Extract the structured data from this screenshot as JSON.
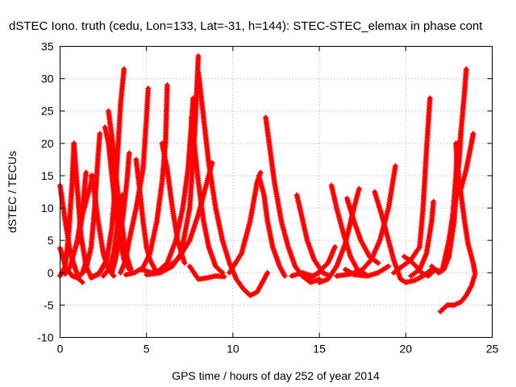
{
  "chart_data": {
    "type": "scatter",
    "title": "dSTEC Iono. truth (cedu, Lon=133, Lat=-31, h=144): STEC-STEC_elemax in phase cont",
    "xlabel": "GPS time / hours of day 252 of year 2014",
    "ylabel": "dSTEC  / TECUs",
    "xlim": [
      0,
      25
    ],
    "ylim": [
      -10,
      35
    ],
    "xticks": [
      0,
      5,
      10,
      15,
      20,
      25
    ],
    "yticks": [
      -10,
      -5,
      0,
      5,
      10,
      15,
      20,
      25,
      30,
      35
    ],
    "grid": true,
    "marker": "plus",
    "color": "#ff0000",
    "series": [
      {
        "points": [
          [
            0.0,
            -0.5
          ],
          [
            0.3,
            1.0
          ],
          [
            0.5,
            6.0
          ],
          [
            0.7,
            14.0
          ],
          [
            0.8,
            20.0
          ]
        ]
      },
      {
        "points": [
          [
            0.8,
            20.0
          ],
          [
            1.0,
            13.0
          ],
          [
            1.2,
            6.0
          ],
          [
            1.5,
            1.0
          ],
          [
            1.8,
            -0.7
          ],
          [
            2.2,
            -0.3
          ],
          [
            2.6,
            1.5
          ]
        ]
      },
      {
        "points": [
          [
            0.0,
            13.5
          ],
          [
            0.3,
            8.0
          ],
          [
            0.6,
            3.0
          ],
          [
            0.9,
            0.5
          ],
          [
            1.1,
            -1.0
          ],
          [
            1.3,
            -1.5
          ]
        ]
      },
      {
        "points": [
          [
            0.0,
            3.8
          ],
          [
            0.3,
            1.0
          ],
          [
            0.7,
            -0.5
          ],
          [
            1.0,
            -0.8
          ],
          [
            1.3,
            0.0
          ],
          [
            1.6,
            2.5
          ]
        ]
      },
      {
        "points": [
          [
            1.0,
            4.5
          ],
          [
            1.3,
            9.0
          ],
          [
            1.6,
            12.0
          ],
          [
            1.9,
            15.0
          ]
        ]
      },
      {
        "points": [
          [
            1.5,
            15.5
          ],
          [
            1.3,
            10.0
          ],
          [
            1.0,
            5.0
          ],
          [
            0.6,
            1.0
          ],
          [
            0.3,
            -0.2
          ]
        ]
      },
      {
        "points": [
          [
            1.8,
            15.0
          ],
          [
            2.0,
            12.0
          ],
          [
            2.2,
            8.0
          ],
          [
            2.5,
            3.0
          ],
          [
            2.8,
            0.5
          ],
          [
            3.1,
            -0.5
          ]
        ]
      },
      {
        "points": [
          [
            1.2,
            -0.3
          ],
          [
            1.5,
            0.5
          ],
          [
            1.8,
            4.0
          ],
          [
            2.0,
            10.0
          ],
          [
            2.2,
            18.0
          ],
          [
            2.3,
            21.5
          ]
        ]
      },
      {
        "points": [
          [
            2.6,
            22.5
          ],
          [
            2.8,
            20.0
          ],
          [
            3.0,
            15.0
          ],
          [
            3.2,
            10.0
          ],
          [
            3.4,
            6.0
          ],
          [
            3.7,
            2.0
          ],
          [
            4.0,
            0.5
          ]
        ]
      },
      {
        "points": [
          [
            2.8,
            25.0
          ],
          [
            3.0,
            21.0
          ],
          [
            3.2,
            16.0
          ],
          [
            3.4,
            11.0
          ],
          [
            3.6,
            7.0
          ],
          [
            3.8,
            3.0
          ],
          [
            4.1,
            0.5
          ]
        ]
      },
      {
        "points": [
          [
            1.8,
            -0.8
          ],
          [
            2.3,
            0.0
          ],
          [
            2.7,
            2.0
          ],
          [
            3.0,
            7.0
          ],
          [
            3.3,
            17.0
          ],
          [
            3.5,
            26.0
          ],
          [
            3.7,
            31.5
          ]
        ]
      },
      {
        "points": [
          [
            2.5,
            -0.5
          ],
          [
            2.8,
            0.5
          ],
          [
            3.1,
            3.0
          ],
          [
            3.3,
            7.0
          ],
          [
            3.6,
            12.0
          ]
        ]
      },
      {
        "points": [
          [
            4.0,
            18.5
          ],
          [
            3.9,
            15.0
          ],
          [
            3.7,
            10.0
          ],
          [
            3.5,
            6.0
          ],
          [
            3.2,
            2.0
          ],
          [
            3.0,
            0.0
          ]
        ]
      },
      {
        "points": [
          [
            3.5,
            0.0
          ],
          [
            3.8,
            2.0
          ],
          [
            4.0,
            5.0
          ],
          [
            4.4,
            10.0
          ],
          [
            4.8,
            16.0
          ],
          [
            5.0,
            24.0
          ],
          [
            5.1,
            28.5
          ]
        ]
      },
      {
        "points": [
          [
            4.4,
            17.5
          ],
          [
            4.6,
            13.0
          ],
          [
            4.8,
            8.0
          ],
          [
            5.0,
            4.0
          ],
          [
            5.2,
            2.0
          ],
          [
            5.5,
            0.5
          ]
        ]
      },
      {
        "points": [
          [
            3.8,
            -0.3
          ],
          [
            4.3,
            0.0
          ],
          [
            4.8,
            0.8
          ],
          [
            5.2,
            3.0
          ],
          [
            5.6,
            8.0
          ],
          [
            5.9,
            14.0
          ],
          [
            6.1,
            20.0
          ],
          [
            6.2,
            29.0
          ]
        ]
      },
      {
        "points": [
          [
            5.9,
            20.0
          ],
          [
            6.2,
            16.0
          ],
          [
            6.5,
            10.0
          ],
          [
            6.8,
            5.0
          ],
          [
            7.2,
            1.5
          ]
        ]
      },
      {
        "points": [
          [
            4.7,
            0.5
          ],
          [
            5.3,
            0.0
          ],
          [
            5.7,
            0.3
          ],
          [
            6.2,
            1.5
          ],
          [
            6.7,
            5.0
          ],
          [
            7.1,
            10.0
          ],
          [
            7.4,
            16.0
          ],
          [
            7.6,
            23.0
          ],
          [
            7.7,
            27.0
          ]
        ]
      },
      {
        "points": [
          [
            7.6,
            24.0
          ],
          [
            7.8,
            19.0
          ],
          [
            8.0,
            14.0
          ],
          [
            8.3,
            8.0
          ],
          [
            8.6,
            4.0
          ],
          [
            9.0,
            1.0
          ],
          [
            9.4,
            0.0
          ]
        ]
      },
      {
        "points": [
          [
            5.0,
            -0.3
          ],
          [
            5.8,
            0.0
          ],
          [
            6.5,
            1.0
          ],
          [
            7.0,
            3.0
          ],
          [
            7.5,
            10.0
          ],
          [
            7.8,
            22.0
          ],
          [
            8.0,
            33.5
          ]
        ]
      },
      {
        "points": [
          [
            8.0,
            31.0
          ],
          [
            8.3,
            24.0
          ],
          [
            8.6,
            17.0
          ],
          [
            9.0,
            10.0
          ],
          [
            9.4,
            5.0
          ],
          [
            9.8,
            1.5
          ],
          [
            10.2,
            -1.0
          ],
          [
            10.6,
            -2.5
          ],
          [
            11.0,
            -3.5
          ],
          [
            11.4,
            -3.0
          ],
          [
            11.8,
            -1.0
          ],
          [
            12.0,
            0.0
          ]
        ]
      },
      {
        "points": [
          [
            6.0,
            0.5
          ],
          [
            6.8,
            2.0
          ],
          [
            7.5,
            5.0
          ],
          [
            8.0,
            9.0
          ],
          [
            8.5,
            14.0
          ],
          [
            8.8,
            17.0
          ]
        ]
      },
      {
        "points": [
          [
            7.5,
            1.0
          ],
          [
            8.0,
            -1.0
          ],
          [
            8.5,
            -0.8
          ],
          [
            9.0,
            -0.5
          ],
          [
            9.5,
            -0.6
          ]
        ]
      },
      {
        "points": [
          [
            9.8,
            0.0
          ],
          [
            10.5,
            3.0
          ],
          [
            11.0,
            8.0
          ],
          [
            11.4,
            14.0
          ],
          [
            11.6,
            15.5
          ]
        ]
      },
      {
        "points": [
          [
            11.5,
            15.0
          ],
          [
            11.8,
            12.0
          ],
          [
            12.0,
            8.0
          ],
          [
            12.3,
            4.0
          ],
          [
            12.7,
            1.0
          ],
          [
            13.0,
            -0.5
          ]
        ]
      },
      {
        "points": [
          [
            11.9,
            24.0
          ],
          [
            12.1,
            20.0
          ],
          [
            12.4,
            14.0
          ],
          [
            12.8,
            8.0
          ],
          [
            13.2,
            4.0
          ],
          [
            13.6,
            1.0
          ],
          [
            14.0,
            -0.5
          ],
          [
            14.5,
            -1.5
          ],
          [
            15.0,
            -1.0
          ]
        ]
      },
      {
        "points": [
          [
            13.4,
            -0.5
          ],
          [
            14.0,
            0.0
          ],
          [
            14.6,
            -0.5
          ],
          [
            15.0,
            0.0
          ]
        ]
      },
      {
        "points": [
          [
            13.7,
            12.0
          ],
          [
            14.0,
            8.5
          ],
          [
            14.3,
            5.0
          ],
          [
            14.7,
            2.0
          ],
          [
            15.2,
            0.0
          ],
          [
            15.6,
            -0.5
          ]
        ]
      },
      {
        "points": [
          [
            14.3,
            -1.0
          ],
          [
            14.8,
            -0.3
          ],
          [
            15.5,
            1.5
          ],
          [
            15.9,
            4.0
          ]
        ]
      },
      {
        "points": [
          [
            15.0,
            -1.5
          ],
          [
            15.5,
            -1.0
          ],
          [
            16.0,
            1.0
          ],
          [
            16.5,
            4.5
          ],
          [
            17.0,
            10.0
          ],
          [
            17.3,
            13.0
          ]
        ]
      },
      {
        "points": [
          [
            15.7,
            13.5
          ],
          [
            16.0,
            10.0
          ],
          [
            16.4,
            6.0
          ],
          [
            16.8,
            2.5
          ],
          [
            17.2,
            0.5
          ],
          [
            17.7,
            -0.3
          ]
        ]
      },
      {
        "points": [
          [
            16.0,
            -0.5
          ],
          [
            16.8,
            -0.2
          ],
          [
            17.5,
            0.5
          ],
          [
            18.0,
            2.0
          ],
          [
            18.5,
            5.0
          ],
          [
            19.0,
            10.0
          ],
          [
            19.4,
            16.5
          ]
        ]
      },
      {
        "points": [
          [
            16.5,
            0.5
          ],
          [
            17.0,
            -0.3
          ],
          [
            17.8,
            -0.5
          ],
          [
            18.4,
            0.0
          ],
          [
            19.0,
            1.0
          ]
        ]
      },
      {
        "points": [
          [
            16.6,
            11.5
          ],
          [
            17.0,
            8.0
          ],
          [
            17.4,
            5.0
          ],
          [
            17.9,
            2.5
          ],
          [
            18.4,
            1.5
          ]
        ]
      },
      {
        "points": [
          [
            18.2,
            12.5
          ],
          [
            18.6,
            9.0
          ],
          [
            19.0,
            5.0
          ],
          [
            19.3,
            2.0
          ],
          [
            19.7,
            -1.0
          ],
          [
            20.0,
            -1.5
          ],
          [
            20.5,
            -1.2
          ],
          [
            21.0,
            -0.5
          ],
          [
            21.5,
            0.5
          ]
        ]
      },
      {
        "points": [
          [
            19.3,
            0.0
          ],
          [
            19.8,
            1.0
          ],
          [
            20.3,
            2.0
          ],
          [
            20.8,
            4.0
          ],
          [
            21.0,
            10.0
          ],
          [
            21.2,
            19.0
          ],
          [
            21.4,
            27.0
          ]
        ]
      },
      {
        "points": [
          [
            19.9,
            2.5
          ],
          [
            20.2,
            2.0
          ],
          [
            20.6,
            1.0
          ],
          [
            20.9,
            0.0
          ],
          [
            21.3,
            -0.5
          ],
          [
            21.7,
            0.5
          ],
          [
            22.0,
            0.2
          ]
        ]
      },
      {
        "points": [
          [
            20.3,
            -0.5
          ],
          [
            20.8,
            0.5
          ],
          [
            21.2,
            3.0
          ],
          [
            21.5,
            8.0
          ],
          [
            21.6,
            11.0
          ]
        ]
      },
      {
        "points": [
          [
            21.5,
            1.0
          ],
          [
            21.9,
            0.0
          ],
          [
            22.2,
            0.5
          ],
          [
            22.5,
            2.5
          ],
          [
            22.8,
            8.0
          ],
          [
            23.0,
            16.0
          ],
          [
            23.2,
            22.0
          ],
          [
            23.4,
            28.0
          ],
          [
            23.5,
            31.5
          ]
        ]
      },
      {
        "points": [
          [
            22.1,
            0.3
          ],
          [
            22.5,
            5.0
          ],
          [
            22.9,
            12.0
          ],
          [
            23.1,
            18.0
          ],
          [
            23.2,
            22.0
          ]
        ]
      },
      {
        "points": [
          [
            22.9,
            20.0
          ],
          [
            23.0,
            16.0
          ],
          [
            23.2,
            12.0
          ],
          [
            23.4,
            8.0
          ],
          [
            23.6,
            4.5
          ],
          [
            23.9,
            1.5
          ],
          [
            24.0,
            0.0
          ]
        ]
      },
      {
        "points": [
          [
            22.5,
            5.0
          ],
          [
            22.7,
            8.0
          ],
          [
            22.9,
            15.0
          ],
          [
            23.0,
            20.0
          ]
        ]
      },
      {
        "points": [
          [
            23.2,
            13.0
          ],
          [
            23.5,
            16.0
          ],
          [
            23.8,
            20.0
          ],
          [
            23.9,
            21.5
          ]
        ]
      },
      {
        "points": [
          [
            22.0,
            -6.0
          ],
          [
            22.4,
            -5.0
          ],
          [
            22.8,
            -5.0
          ],
          [
            23.2,
            -4.5
          ],
          [
            23.5,
            -3.5
          ],
          [
            23.8,
            -2.0
          ],
          [
            24.0,
            -0.3
          ]
        ]
      }
    ]
  }
}
